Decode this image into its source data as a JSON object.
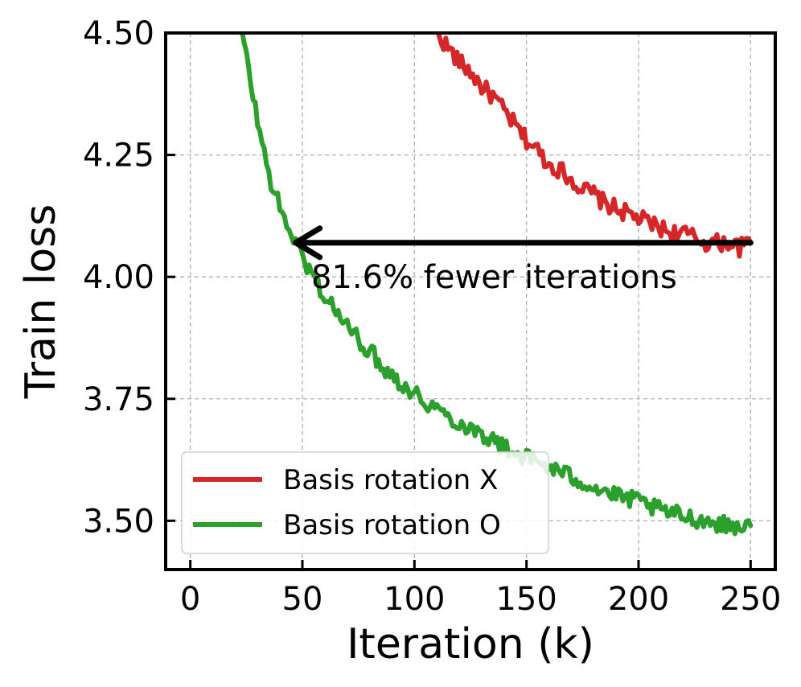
{
  "chart_data": {
    "type": "line",
    "title": "",
    "xlabel": "Iteration (k)",
    "ylabel": "Train loss",
    "xlim": [
      -11,
      261
    ],
    "ylim": [
      3.4,
      4.5
    ],
    "xticks": [
      0,
      50,
      100,
      150,
      200,
      250
    ],
    "xtick_labels": [
      "0",
      "50",
      "100",
      "150",
      "200",
      "250"
    ],
    "yticks": [
      3.5,
      3.75,
      4.0,
      4.25,
      4.5
    ],
    "ytick_labels": [
      "3.50",
      "3.75",
      "4.00",
      "4.25",
      "4.50"
    ],
    "grid": true,
    "legend": {
      "position": "lower-left"
    },
    "series": [
      {
        "name": "Basis rotation X",
        "color": "#d62728",
        "x": [
          110,
          115,
          120,
          125,
          130,
          135,
          140,
          145,
          150,
          155,
          160,
          165,
          170,
          175,
          180,
          185,
          190,
          195,
          200,
          205,
          210,
          215,
          220,
          225,
          230,
          235,
          240,
          245,
          250
        ],
        "y": [
          4.5,
          4.47,
          4.44,
          4.42,
          4.39,
          4.37,
          4.34,
          4.31,
          4.28,
          4.26,
          4.23,
          4.22,
          4.2,
          4.18,
          4.17,
          4.15,
          4.14,
          4.13,
          4.12,
          4.11,
          4.1,
          4.09,
          4.09,
          4.08,
          4.07,
          4.07,
          4.07,
          4.06,
          4.07
        ]
      },
      {
        "name": "Basis rotation O",
        "color": "#2ca02c",
        "x": [
          23,
          25,
          30,
          35,
          40,
          45,
          50,
          55,
          60,
          65,
          70,
          75,
          80,
          85,
          90,
          95,
          100,
          110,
          120,
          130,
          140,
          150,
          160,
          170,
          180,
          190,
          200,
          210,
          220,
          230,
          240,
          250
        ],
        "y": [
          4.5,
          4.45,
          4.32,
          4.21,
          4.14,
          4.09,
          4.04,
          4.0,
          3.96,
          3.93,
          3.9,
          3.87,
          3.85,
          3.82,
          3.8,
          3.78,
          3.76,
          3.73,
          3.7,
          3.68,
          3.65,
          3.63,
          3.61,
          3.59,
          3.57,
          3.55,
          3.54,
          3.52,
          3.51,
          3.5,
          3.49,
          3.49
        ]
      }
    ],
    "annotations": [
      {
        "type": "arrow",
        "text": "81.6% fewer iterations",
        "from": [
          250,
          4.07
        ],
        "to": [
          47,
          4.07
        ]
      }
    ]
  }
}
